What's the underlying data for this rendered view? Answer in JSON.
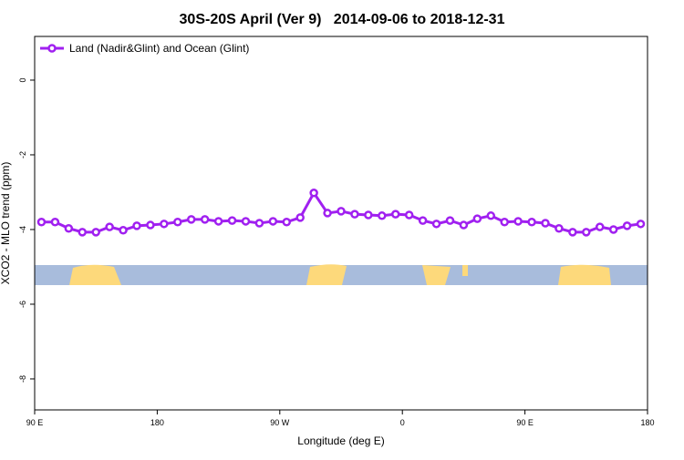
{
  "chart_data": {
    "type": "line",
    "title": "30S-20S April (Ver 9)   2014-09-06 to 2018-12-31",
    "x_label": "Longitude (deg E)",
    "y_label": "XCO2 - MLO trend (ppm)",
    "x": [
      95,
      105,
      115,
      125,
      135,
      145,
      155,
      165,
      175,
      185,
      195,
      205,
      215,
      225,
      235,
      245,
      255,
      265,
      275,
      285,
      295,
      305,
      315,
      325,
      335,
      345,
      355,
      365,
      375,
      385,
      395,
      405,
      415,
      425,
      435,
      445,
      455,
      465,
      475,
      485,
      495,
      505,
      515,
      525,
      535
    ],
    "series": [
      {
        "name": "Land (Nadir&Glint) and Ocean (Glint)",
        "color": "#a020f0",
        "values": [
          -3.8,
          -3.8,
          -3.97,
          -4.07,
          -4.07,
          -3.93,
          -4.02,
          -3.9,
          -3.88,
          -3.85,
          -3.8,
          -3.73,
          -3.73,
          -3.78,
          -3.76,
          -3.78,
          -3.83,
          -3.78,
          -3.8,
          -3.68,
          -3.02,
          -3.56,
          -3.51,
          -3.59,
          -3.61,
          -3.63,
          -3.59,
          -3.61,
          -3.76,
          -3.85,
          -3.76,
          -3.88,
          -3.71,
          -3.63,
          -3.8,
          -3.78,
          -3.8,
          -3.83,
          -3.97,
          -4.07,
          -4.07,
          -3.93,
          -4.0,
          -3.9,
          -3.85
        ]
      }
    ],
    "xlim": [
      90,
      540
    ],
    "xticks": [
      {
        "value": 90,
        "label": "90 E"
      },
      180,
      {
        "value": 270,
        "label": "90 W"
      },
      {
        "value": 360,
        "label": "0"
      },
      {
        "value": 450,
        "label": "90 E"
      },
      {
        "value": 540,
        "label": "180"
      }
    ],
    "ylim": [
      -8.83,
      1.17
    ],
    "yticks": [
      0,
      -2,
      -4,
      -6,
      -8
    ],
    "legend": "top-left"
  }
}
